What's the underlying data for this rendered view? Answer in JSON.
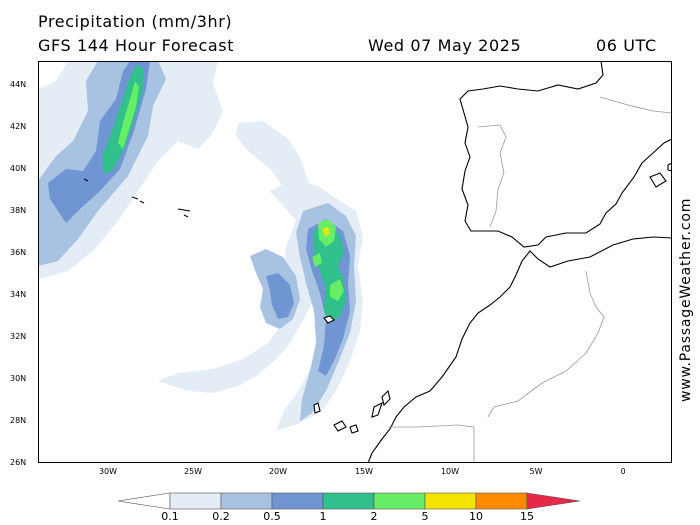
{
  "header": {
    "title": "Precipitation (mm/3hr)",
    "subtitle": "GFS 144 Hour Forecast",
    "date": "Wed 07 May 2025",
    "run": "06 UTC"
  },
  "watermark": "www.PassageWeather.com",
  "map": {
    "lat_labels": [
      "44N",
      "42N",
      "40N",
      "38N",
      "36N",
      "34N",
      "32N",
      "30N",
      "28N",
      "26N"
    ],
    "lon_labels": [
      "30W",
      "25W",
      "20W",
      "15W",
      "10W",
      "5W",
      "0"
    ],
    "land_color": "#ffffff",
    "coast_color": "#000000",
    "border_color": "#9a9a9a"
  },
  "legend": {
    "labels": [
      "0.1",
      "0.2",
      "0.5",
      "1",
      "2",
      "5",
      "10",
      "15"
    ],
    "colors": [
      "#ffffff",
      "#e4ecf6",
      "#a8c2e2",
      "#6f95d2",
      "#2fc08c",
      "#66ee66",
      "#f2e400",
      "#ff8a00",
      "#e8284a"
    ]
  }
}
